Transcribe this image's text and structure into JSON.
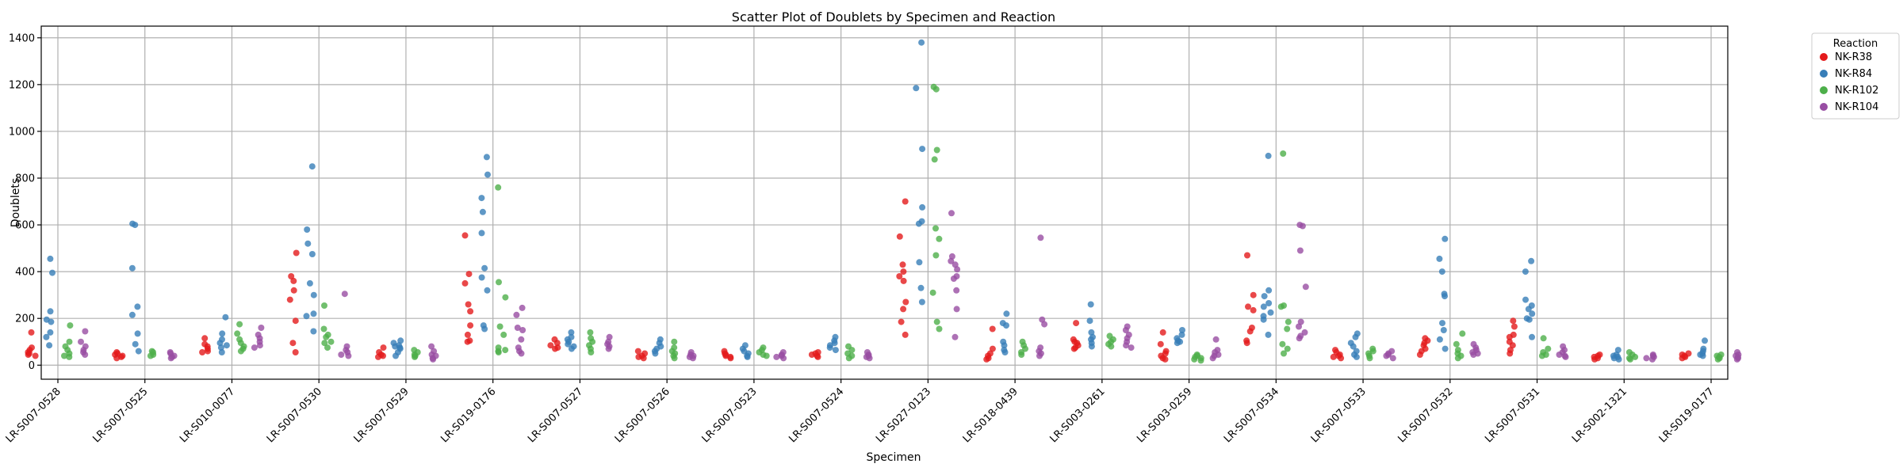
{
  "chart_data": {
    "type": "scatter",
    "title": "Scatter Plot of Doublets by Specimen and Reaction",
    "xlabel": "Specimen",
    "ylabel": "Doublets",
    "ylim": [
      -60,
      1450
    ],
    "yticks": [
      0,
      200,
      400,
      600,
      800,
      1000,
      1200,
      1400
    ],
    "grid": true,
    "legend": {
      "title": "Reaction",
      "placement": "outside-top-right"
    },
    "categories": [
      "LR-S007-0528",
      "LR-S007-0525",
      "LR-S010-0077",
      "LR-S007-0530",
      "LR-S007-0529",
      "LR-S019-0176",
      "LR-S007-0527",
      "LR-S007-0526",
      "LR-S007-0523",
      "LR-S007-0524",
      "LR-S027-0123",
      "LR-S018-0439",
      "LR-S003-0261",
      "LR-S003-0259",
      "LR-S007-0534",
      "LR-S007-0533",
      "LR-S007-0532",
      "LR-S007-0531",
      "LR-S002-1321",
      "LR-S019-0177"
    ],
    "series": [
      {
        "name": "NK-R38",
        "color": "#e41a1c",
        "values": [
          [
            140,
            75,
            65,
            55,
            50,
            45,
            40
          ],
          [
            55,
            50,
            45,
            40,
            35,
            30
          ],
          [
            115,
            90,
            80,
            70,
            60,
            55
          ],
          [
            480,
            380,
            360,
            320,
            280,
            190,
            95,
            55
          ],
          [
            75,
            55,
            45,
            40,
            35
          ],
          [
            555,
            390,
            350,
            260,
            230,
            170,
            130,
            105,
            100
          ],
          [
            110,
            95,
            85,
            75,
            70
          ],
          [
            60,
            50,
            40,
            35,
            30
          ],
          [
            60,
            50,
            45,
            40,
            35,
            30
          ],
          [
            55,
            50,
            45,
            40,
            35
          ],
          [
            700,
            550,
            430,
            400,
            380,
            360,
            270,
            240,
            185,
            130
          ],
          [
            155,
            70,
            50,
            40,
            30,
            25
          ],
          [
            180,
            110,
            100,
            95,
            85,
            75,
            70
          ],
          [
            140,
            90,
            60,
            50,
            40,
            30,
            25
          ],
          [
            470,
            300,
            250,
            235,
            160,
            145,
            105,
            95
          ],
          [
            65,
            55,
            45,
            40,
            35,
            30
          ],
          [
            115,
            105,
            95,
            85,
            70,
            60,
            45
          ],
          [
            190,
            165,
            130,
            120,
            100,
            85,
            65,
            50
          ],
          [
            45,
            40,
            35,
            30,
            25
          ],
          [
            50,
            45,
            40,
            35,
            30
          ]
        ]
      },
      {
        "name": "NK-R84",
        "color": "#377eb8",
        "values": [
          [
            455,
            395,
            230,
            195,
            185,
            140,
            120,
            85
          ],
          [
            605,
            600,
            415,
            250,
            215,
            135,
            90,
            60
          ],
          [
            205,
            135,
            110,
            95,
            85,
            75,
            55
          ],
          [
            850,
            580,
            520,
            475,
            350,
            300,
            220,
            210,
            145
          ],
          [
            105,
            95,
            85,
            80,
            75,
            70,
            55,
            40
          ],
          [
            890,
            815,
            715,
            655,
            565,
            415,
            375,
            320,
            170,
            155
          ],
          [
            140,
            120,
            110,
            100,
            90,
            80,
            70
          ],
          [
            110,
            95,
            80,
            70,
            60,
            50
          ],
          [
            85,
            70,
            60,
            50,
            40,
            35
          ],
          [
            120,
            105,
            95,
            85,
            75,
            65
          ],
          [
            1380,
            1185,
            925,
            675,
            615,
            605,
            440,
            330,
            270
          ],
          [
            220,
            180,
            170,
            100,
            85,
            65,
            55
          ],
          [
            260,
            190,
            140,
            120,
            110,
            95,
            80
          ],
          [
            150,
            130,
            115,
            105,
            100,
            95
          ],
          [
            895,
            320,
            295,
            265,
            250,
            225,
            210,
            195,
            130
          ],
          [
            135,
            120,
            95,
            80,
            60,
            45,
            35
          ],
          [
            540,
            455,
            400,
            305,
            295,
            180,
            150,
            110,
            70
          ],
          [
            445,
            400,
            280,
            255,
            240,
            220,
            200,
            195,
            120
          ],
          [
            65,
            45,
            40,
            35,
            30,
            25
          ],
          [
            105,
            70,
            60,
            50,
            45,
            40
          ]
        ]
      },
      {
        "name": "NK-R102",
        "color": "#4daf4a",
        "values": [
          [
            170,
            100,
            80,
            65,
            50,
            40,
            35
          ],
          [
            60,
            55,
            45,
            40
          ],
          [
            175,
            135,
            110,
            95,
            80,
            70,
            60
          ],
          [
            255,
            155,
            130,
            120,
            100,
            95,
            75
          ],
          [
            65,
            55,
            45,
            40,
            35
          ],
          [
            760,
            355,
            290,
            165,
            130,
            75,
            65,
            60,
            55
          ],
          [
            140,
            115,
            100,
            85,
            70,
            55
          ],
          [
            100,
            75,
            60,
            50,
            40,
            30
          ],
          [
            75,
            65,
            55,
            45,
            40
          ],
          [
            80,
            65,
            50,
            40,
            30
          ],
          [
            1190,
            1180,
            920,
            880,
            585,
            540,
            470,
            310,
            185,
            155
          ],
          [
            100,
            85,
            70,
            55,
            45
          ],
          [
            125,
            110,
            100,
            90,
            80
          ],
          [
            45,
            40,
            35,
            30,
            25,
            20
          ],
          [
            905,
            255,
            250,
            185,
            155,
            90,
            70,
            50
          ],
          [
            70,
            60,
            50,
            40,
            30
          ],
          [
            135,
            90,
            65,
            50,
            40,
            30
          ],
          [
            115,
            70,
            55,
            45,
            40
          ],
          [
            55,
            45,
            35,
            30,
            25
          ],
          [
            45,
            40,
            35,
            30,
            25
          ]
        ]
      },
      {
        "name": "NK-R104",
        "color": "#984ea3",
        "values": [
          [
            145,
            100,
            80,
            65,
            55,
            45
          ],
          [
            55,
            50,
            40,
            35,
            30
          ],
          [
            160,
            130,
            115,
            100,
            85,
            75
          ],
          [
            305,
            80,
            65,
            55,
            45,
            40
          ],
          [
            80,
            60,
            45,
            40,
            30,
            25
          ],
          [
            245,
            215,
            160,
            150,
            110,
            75,
            60,
            50
          ],
          [
            120,
            100,
            90,
            80,
            70
          ],
          [
            55,
            45,
            40,
            35,
            30
          ],
          [
            55,
            45,
            40,
            35,
            30
          ],
          [
            55,
            45,
            40,
            35,
            30
          ],
          [
            650,
            465,
            445,
            430,
            410,
            380,
            370,
            320,
            240,
            120
          ],
          [
            545,
            195,
            175,
            75,
            60,
            50,
            40
          ],
          [
            165,
            150,
            130,
            115,
            100,
            85,
            75
          ],
          [
            110,
            65,
            55,
            45,
            40,
            30
          ],
          [
            600,
            595,
            490,
            335,
            185,
            165,
            140,
            125,
            115
          ],
          [
            60,
            50,
            45,
            40,
            30
          ],
          [
            90,
            75,
            65,
            55,
            50,
            45
          ],
          [
            80,
            65,
            55,
            45,
            40,
            35
          ],
          [
            45,
            40,
            35,
            30,
            25
          ],
          [
            55,
            45,
            40,
            35,
            30,
            25
          ]
        ]
      }
    ]
  }
}
